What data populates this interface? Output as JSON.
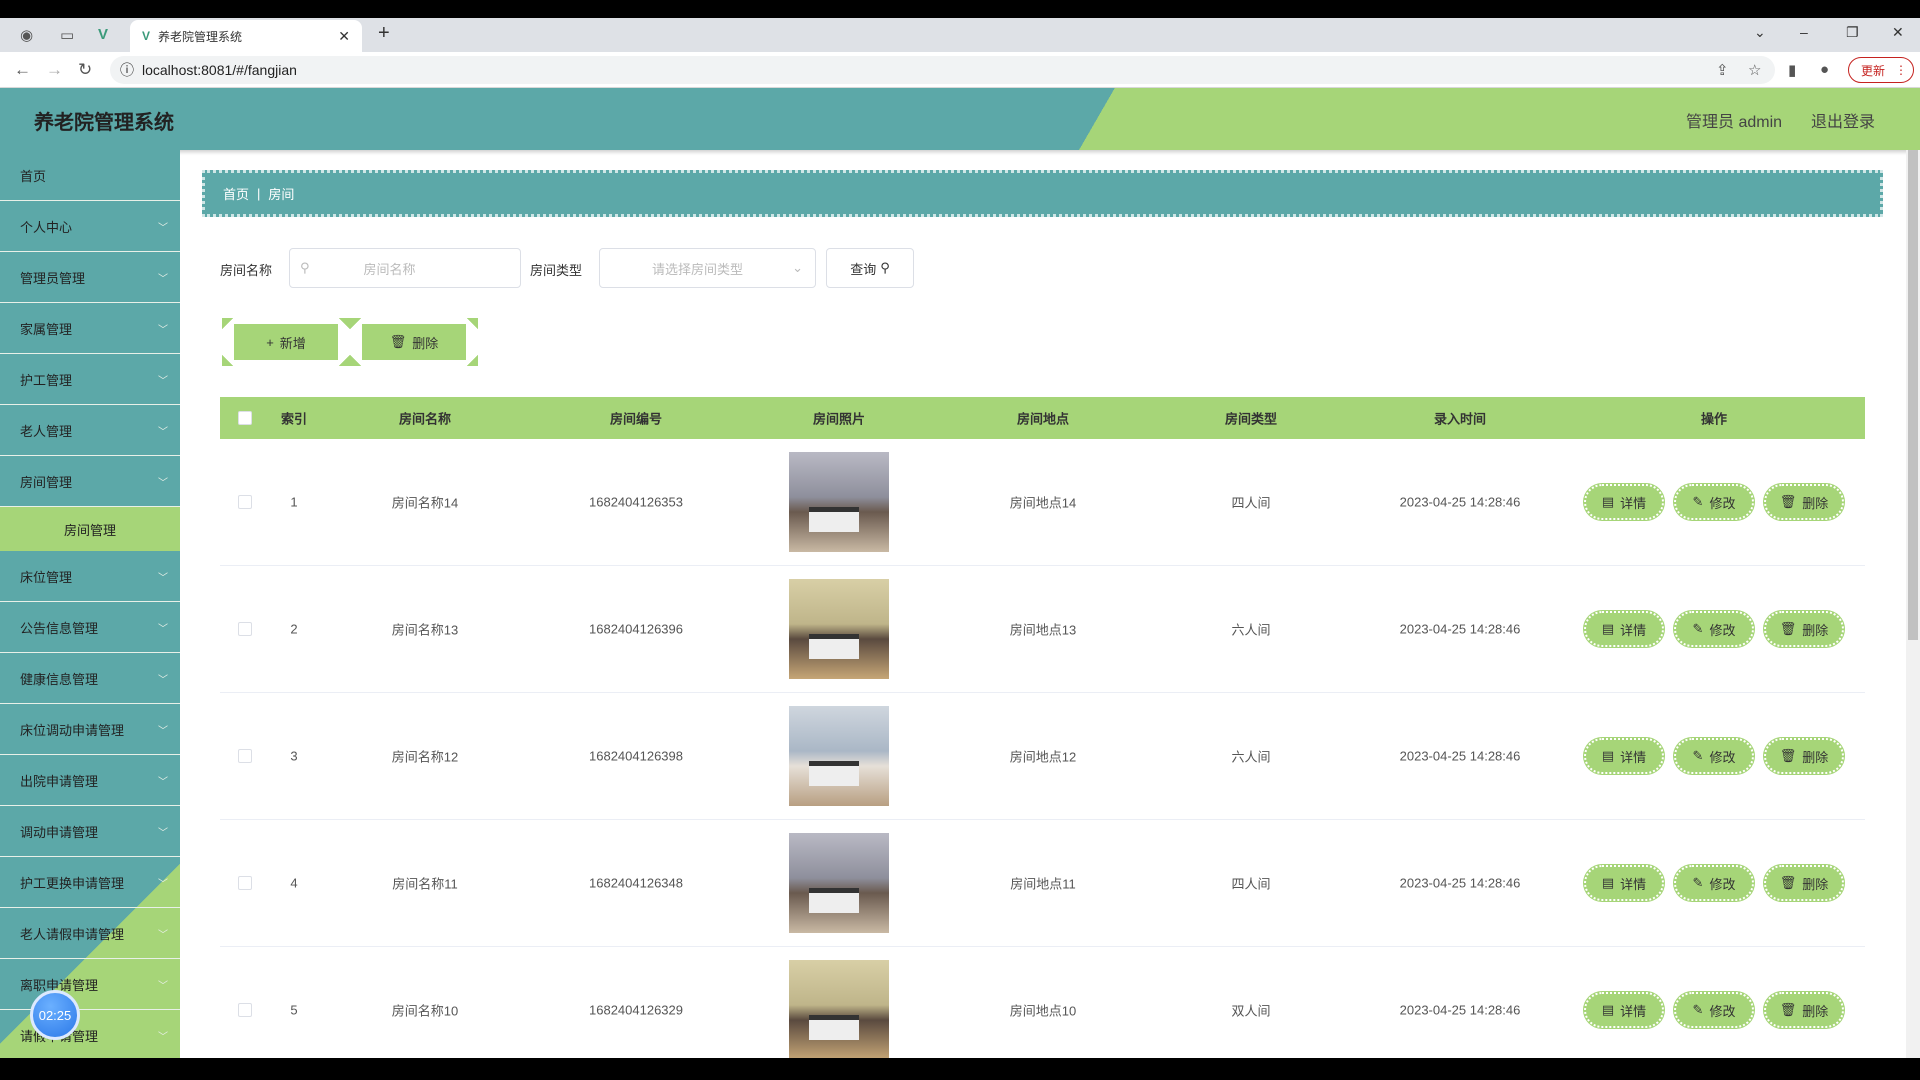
{
  "browser": {
    "tab_title": "养老院管理系统",
    "url": "localhost:8081/#/fangjian",
    "update_label": "更新"
  },
  "header": {
    "title": "养老院管理系统",
    "user": "管理员 admin",
    "logout": "退出登录"
  },
  "sidebar": {
    "items": [
      {
        "label": "首页"
      },
      {
        "label": "个人中心"
      },
      {
        "label": "管理员管理"
      },
      {
        "label": "家属管理"
      },
      {
        "label": "护工管理"
      },
      {
        "label": "老人管理"
      },
      {
        "label": "房间管理",
        "sub": "房间管理"
      },
      {
        "label": "床位管理"
      },
      {
        "label": "公告信息管理"
      },
      {
        "label": "健康信息管理"
      },
      {
        "label": "床位调动申请管理"
      },
      {
        "label": "出院申请管理"
      },
      {
        "label": "调动申请管理"
      },
      {
        "label": "护工更换申请管理"
      },
      {
        "label": "老人请假申请管理"
      },
      {
        "label": "离职申请管理"
      },
      {
        "label": "请假申请管理"
      }
    ]
  },
  "timer": "02:25",
  "breadcrumb": {
    "home": "首页",
    "current": "房间"
  },
  "search": {
    "name_label": "房间名称",
    "name_placeholder": "房间名称",
    "type_label": "房间类型",
    "type_placeholder": "请选择房间类型",
    "query": "查询"
  },
  "actions": {
    "add": "新增",
    "delete": "删除"
  },
  "table": {
    "columns": [
      "索引",
      "房间名称",
      "房间编号",
      "房间照片",
      "房间地点",
      "房间类型",
      "录入时间",
      "操作"
    ],
    "op_labels": {
      "detail": "详情",
      "edit": "修改",
      "delete": "删除"
    },
    "rows": [
      {
        "index": "1",
        "name": "房间名称14",
        "code": "1682404126353",
        "place": "房间地点14",
        "type": "四人间",
        "time": "2023-04-25 14:28:46"
      },
      {
        "index": "2",
        "name": "房间名称13",
        "code": "1682404126396",
        "place": "房间地点13",
        "type": "六人间",
        "time": "2023-04-25 14:28:46"
      },
      {
        "index": "3",
        "name": "房间名称12",
        "code": "1682404126398",
        "place": "房间地点12",
        "type": "六人间",
        "time": "2023-04-25 14:28:46"
      },
      {
        "index": "4",
        "name": "房间名称11",
        "code": "1682404126348",
        "place": "房间地点11",
        "type": "四人间",
        "time": "2023-04-25 14:28:46"
      },
      {
        "index": "5",
        "name": "房间名称10",
        "code": "1682404126329",
        "place": "房间地点10",
        "type": "双人间",
        "time": "2023-04-25 14:28:46"
      }
    ]
  },
  "colors": {
    "teal": "#5ca8a8",
    "green": "#a6d578"
  }
}
